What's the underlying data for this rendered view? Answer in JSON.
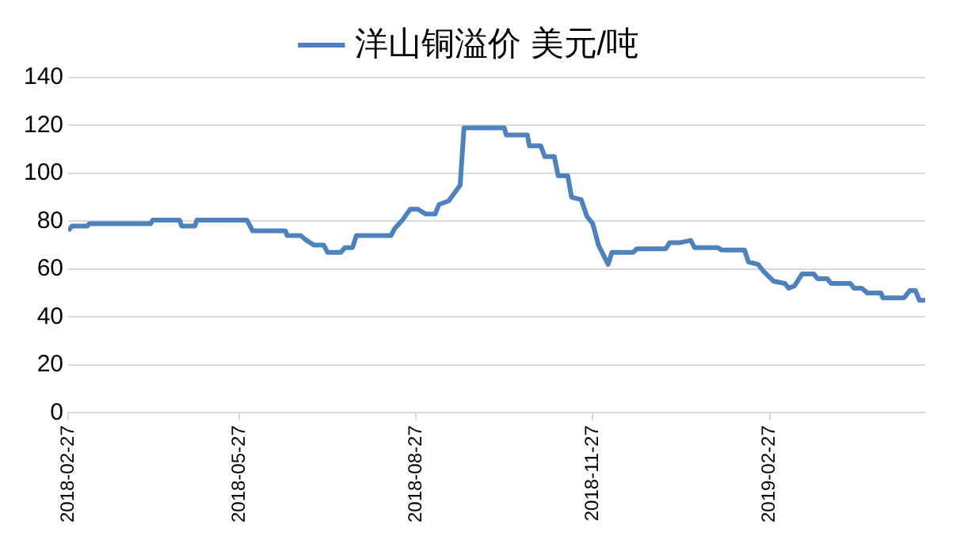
{
  "chart_data": {
    "type": "line",
    "legend": "top",
    "grid": "y",
    "marker": "none",
    "line_style": "solid",
    "x": [
      "2018-02-27",
      "2018-03-01",
      "2018-03-09",
      "2018-03-10",
      "2018-04-11",
      "2018-04-12",
      "2018-04-26",
      "2018-04-27",
      "2018-05-04",
      "2018-05-05",
      "2018-05-31",
      "2018-06-03",
      "2018-06-20",
      "2018-06-21",
      "2018-06-28",
      "2018-07-01",
      "2018-07-05",
      "2018-07-10",
      "2018-07-12",
      "2018-07-19",
      "2018-07-21",
      "2018-07-25",
      "2018-07-27",
      "2018-08-14",
      "2018-08-16",
      "2018-08-20",
      "2018-08-24",
      "2018-08-28",
      "2018-09-01",
      "2018-09-06",
      "2018-09-08",
      "2018-09-13",
      "2018-09-19",
      "2018-09-21",
      "2018-10-12",
      "2018-10-13",
      "2018-10-24",
      "2018-10-25",
      "2018-10-31",
      "2018-11-02",
      "2018-11-07",
      "2018-11-09",
      "2018-11-14",
      "2018-11-16",
      "2018-11-21",
      "2018-11-24",
      "2018-11-27",
      "2018-11-30",
      "2018-12-05",
      "2018-12-07",
      "2018-12-18",
      "2018-12-20",
      "2019-01-04",
      "2019-01-06",
      "2019-01-11",
      "2019-01-17",
      "2019-01-19",
      "2019-01-31",
      "2019-02-02",
      "2019-02-14",
      "2019-02-16",
      "2019-02-21",
      "2019-02-24",
      "2019-03-01",
      "2019-03-07",
      "2019-03-09",
      "2019-03-12",
      "2019-03-16",
      "2019-03-22",
      "2019-03-24",
      "2019-03-29",
      "2019-03-31",
      "2019-04-10",
      "2019-04-12",
      "2019-04-16",
      "2019-04-19",
      "2019-04-26",
      "2019-04-27",
      "2019-05-08",
      "2019-05-11",
      "2019-05-14",
      "2019-05-16",
      "2019-05-19"
    ],
    "series": [
      {
        "name": "洋山铜溢价 美元/吨",
        "color": "#4f81bd",
        "values": [
          76,
          78,
          78,
          79,
          79,
          80.5,
          80.5,
          78,
          78,
          80.5,
          80.5,
          76,
          76,
          74,
          74,
          72,
          70,
          70,
          67,
          67,
          69,
          69,
          74,
          74,
          77,
          80.5,
          85,
          85,
          83,
          83,
          87,
          88.5,
          95,
          119,
          119,
          116,
          116,
          111.5,
          111.5,
          107,
          107,
          99,
          99,
          90,
          89,
          82,
          79,
          70,
          62,
          67,
          67,
          68.5,
          68.5,
          71,
          71,
          72,
          69,
          69,
          68,
          68,
          63,
          62,
          59,
          55,
          54,
          52,
          53,
          58,
          58,
          56,
          56,
          54,
          54,
          52,
          52,
          50,
          50,
          48,
          48,
          51,
          51,
          47,
          47
        ]
      }
    ],
    "xlim": [
      "2018-02-27",
      "2019-05-19"
    ],
    "xticks": [
      "2018-02-27",
      "2018-05-27",
      "2018-08-27",
      "2018-11-27",
      "2019-02-27"
    ],
    "ylim": [
      0,
      140
    ],
    "yticks": [
      0,
      20,
      40,
      60,
      80,
      100,
      120,
      140
    ]
  }
}
